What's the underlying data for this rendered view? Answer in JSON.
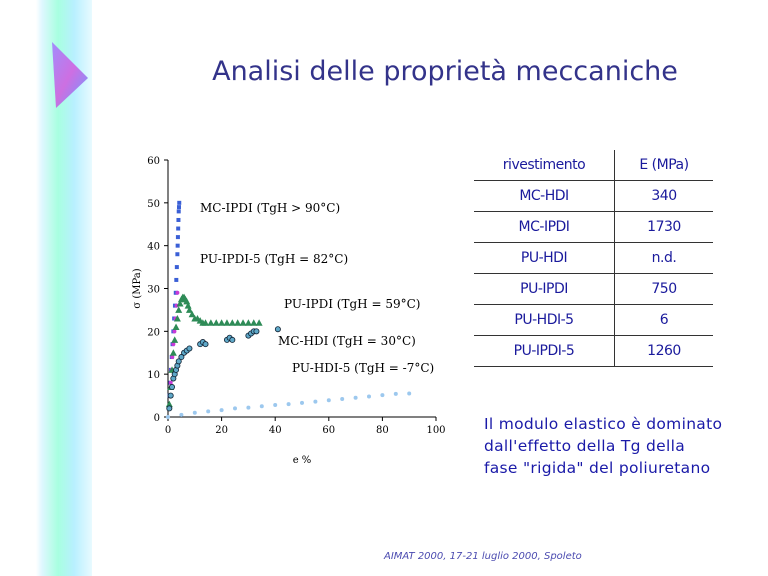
{
  "slide": {
    "title": "Analisi delle proprietà meccaniche",
    "footer": "AIMAT 2000, 17-21 luglio 2000, Spoleto",
    "note_lines": [
      "Il modulo elastico è dominato",
      "dall'effetto della Tg della",
      "fase \"rigida\" del poliuretano"
    ]
  },
  "table": {
    "headers": [
      "rivestimento",
      "E (MPa)"
    ],
    "rows": [
      [
        "MC-HDI",
        "340"
      ],
      [
        "MC-IPDI",
        "1730"
      ],
      [
        "PU-HDI",
        "n.d."
      ],
      [
        "PU-IPDI",
        "750"
      ],
      [
        "PU-HDI-5",
        "6"
      ],
      [
        "PU-IPDI-5",
        "1260"
      ]
    ]
  },
  "chart_data": {
    "type": "scatter",
    "xlabel": "e %",
    "ylabel": "σ (MPa)",
    "xlim": [
      0,
      100
    ],
    "ylim": [
      0,
      60
    ],
    "xticks": [
      0,
      20,
      40,
      60,
      80,
      100
    ],
    "yticks": [
      0,
      10,
      20,
      30,
      40,
      50,
      60
    ],
    "grid": false,
    "series": [
      {
        "name": "MC-IPDI (TgH > 90°C)",
        "marker": "square",
        "color": "#3a5fd6",
        "x": [
          0.3,
          0.6,
          0.9,
          1.1,
          1.4,
          1.7,
          2.0,
          2.3,
          2.6,
          2.9,
          3.1,
          3.3,
          3.5,
          3.6,
          3.7,
          3.8,
          3.9,
          4.0,
          4.1,
          4.2
        ],
        "y": [
          2,
          5,
          8,
          11,
          14,
          17,
          20,
          23,
          26,
          29,
          32,
          35,
          38,
          40,
          42,
          44,
          46,
          48,
          49,
          50
        ]
      },
      {
        "name": "PU-IPDI-5 (TgH = 82°C)",
        "marker": "circle-small",
        "color": "#c83ad6",
        "x": [
          0.3,
          0.7,
          1.0,
          1.3,
          1.6,
          2.0,
          2.4,
          2.8,
          3.2,
          3.5
        ],
        "y": [
          2,
          5,
          8,
          11,
          14,
          17,
          20,
          23,
          26,
          29
        ]
      },
      {
        "name": "PU-IPDI (TgH = 59°C)",
        "marker": "triangle",
        "color": "#2e8b57",
        "x": [
          0.5,
          1.0,
          1.5,
          2.0,
          2.5,
          3.0,
          3.5,
          4.0,
          4.5,
          5.0,
          5.5,
          6.0,
          6.5,
          7.0,
          7.5,
          8.0,
          9.0,
          10.0,
          11.0,
          12.0,
          13.0,
          14.0,
          16.0,
          18.0,
          20.0,
          22.0,
          24.0,
          26.0,
          28.0,
          30.0,
          32.0,
          34.0
        ],
        "y": [
          3,
          7,
          11,
          15,
          18,
          21,
          23,
          25,
          26.5,
          27.5,
          28,
          28,
          27.5,
          27,
          26,
          25,
          24,
          23,
          23,
          22.5,
          22,
          22,
          22,
          22,
          22,
          22,
          22,
          22,
          22,
          22,
          22,
          22
        ]
      },
      {
        "name": "MC-HDI (TgH = 30°C)",
        "marker": "circle",
        "color": "#5fa8c8",
        "x": [
          0.5,
          1.0,
          1.5,
          2.0,
          2.5,
          3.0,
          3.5,
          4.0,
          5.0,
          6.0,
          7.0,
          8.0,
          12.0,
          13.0,
          14.0,
          22.0,
          23.0,
          24.0,
          30.0,
          31.0,
          32.0,
          33.0,
          41.0
        ],
        "y": [
          2,
          5,
          7,
          9,
          10,
          11,
          12,
          13,
          14,
          15,
          15.5,
          16,
          17,
          17.5,
          17,
          18,
          18.5,
          18,
          19,
          19.5,
          20,
          20,
          20.5
        ]
      },
      {
        "name": "PU-HDI-5 (TgH = -7°C)",
        "marker": "circle-small",
        "color": "#9cc8ee",
        "x": [
          0,
          5,
          10,
          15,
          20,
          25,
          30,
          35,
          40,
          45,
          50,
          55,
          60,
          65,
          70,
          75,
          80,
          85,
          90
        ],
        "y": [
          0,
          0.5,
          1,
          1.3,
          1.6,
          2,
          2.2,
          2.5,
          2.8,
          3,
          3.3,
          3.6,
          3.9,
          4.2,
          4.5,
          4.8,
          5.1,
          5.4,
          5.5
        ]
      }
    ]
  }
}
